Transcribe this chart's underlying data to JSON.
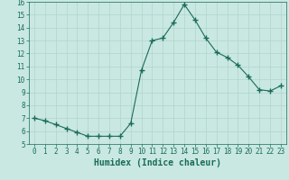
{
  "x": [
    0,
    1,
    2,
    3,
    4,
    5,
    6,
    7,
    8,
    9,
    10,
    11,
    12,
    13,
    14,
    15,
    16,
    17,
    18,
    19,
    20,
    21,
    22,
    23
  ],
  "y": [
    7.0,
    6.8,
    6.5,
    6.2,
    5.9,
    5.6,
    5.6,
    5.6,
    5.6,
    6.6,
    10.7,
    13.0,
    13.2,
    14.4,
    15.8,
    14.6,
    13.2,
    12.1,
    11.7,
    11.1,
    10.2,
    9.2,
    9.1,
    9.5
  ],
  "line_color": "#1a6b5a",
  "marker": "+",
  "marker_size": 4,
  "bg_color": "#c9e8e2",
  "grid_color": "#b0d4cc",
  "xlabel": "Humidex (Indice chaleur)",
  "ylim": [
    5,
    16
  ],
  "xlim": [
    -0.5,
    23.5
  ],
  "yticks": [
    5,
    6,
    7,
    8,
    9,
    10,
    11,
    12,
    13,
    14,
    15,
    16
  ],
  "xticks": [
    0,
    1,
    2,
    3,
    4,
    5,
    6,
    7,
    8,
    9,
    10,
    11,
    12,
    13,
    14,
    15,
    16,
    17,
    18,
    19,
    20,
    21,
    22,
    23
  ],
  "tick_fontsize": 5.5,
  "xlabel_fontsize": 7,
  "spine_color": "#1a6b5a"
}
